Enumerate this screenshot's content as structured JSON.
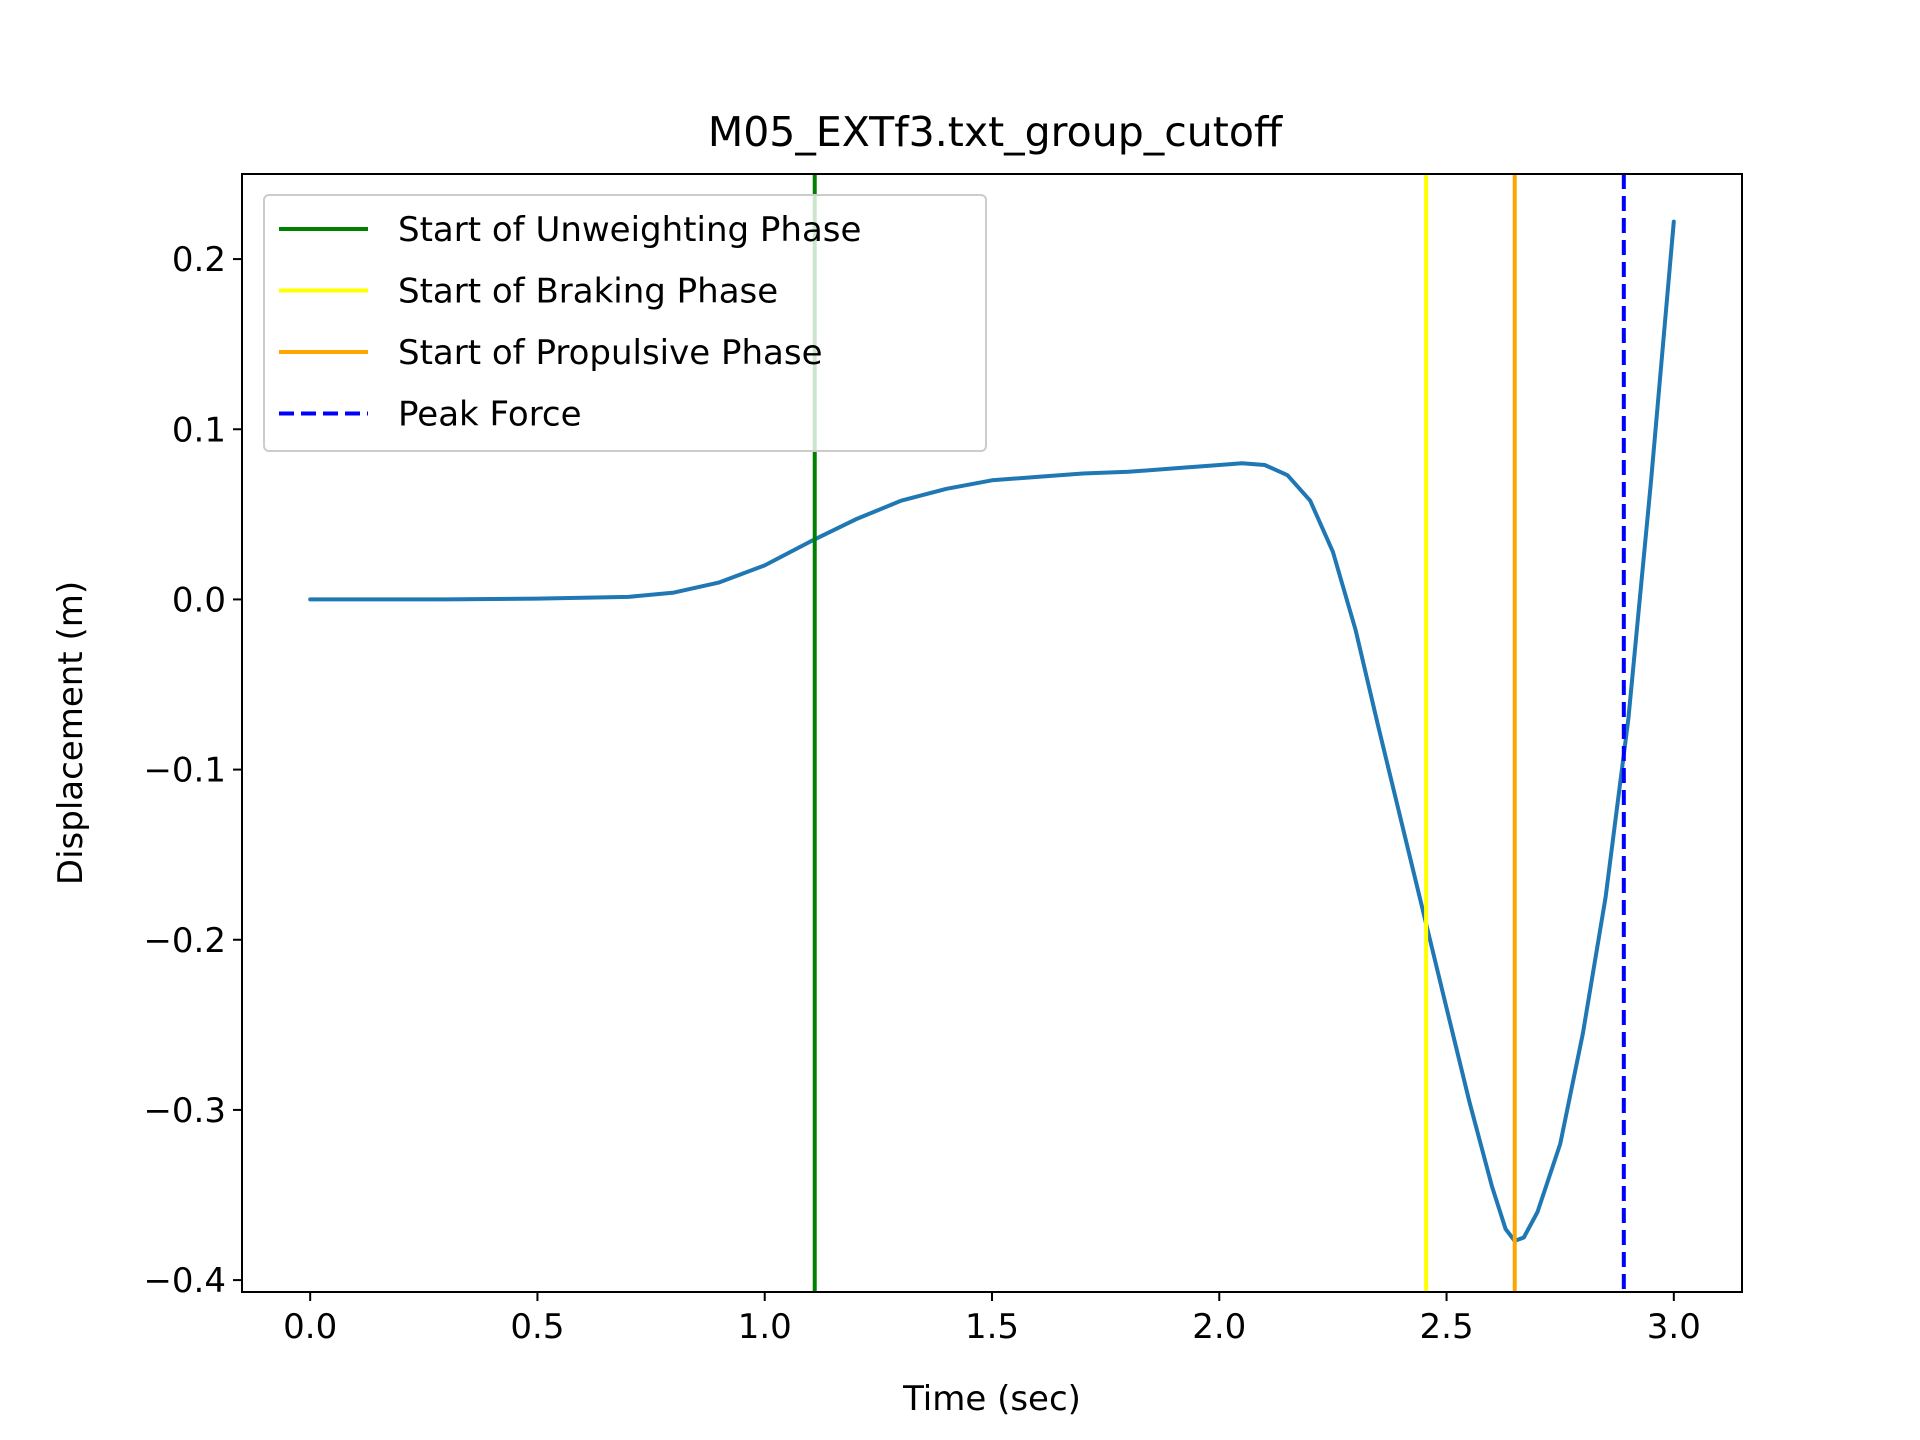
{
  "chart_data": {
    "type": "line",
    "title": "M05_EXTf3.txt_group_cutoff",
    "xlabel": "Time (sec)",
    "ylabel": "Displacement (m)",
    "xlim": [
      -0.15,
      3.15
    ],
    "ylim": [
      -0.407,
      0.25
    ],
    "x_ticks": [
      0.0,
      0.5,
      1.0,
      1.5,
      2.0,
      2.5,
      3.0
    ],
    "x_tick_labels": [
      "0.0",
      "0.5",
      "1.0",
      "1.5",
      "2.0",
      "2.5",
      "3.0"
    ],
    "y_ticks": [
      0.2,
      0.1,
      0.0,
      -0.1,
      -0.2,
      -0.3,
      -0.4
    ],
    "y_tick_labels": [
      "0.2",
      "0.1",
      "0.0",
      "−0.1",
      "−0.2",
      "−0.3",
      "−0.4"
    ],
    "grid": false,
    "legend_position": "top-left",
    "series": [
      {
        "color": "#1f77b4",
        "points": [
          [
            0.0,
            0.0
          ],
          [
            0.3,
            0.0
          ],
          [
            0.5,
            0.0005
          ],
          [
            0.7,
            0.0015
          ],
          [
            0.8,
            0.004
          ],
          [
            0.9,
            0.01
          ],
          [
            1.0,
            0.02
          ],
          [
            1.1,
            0.034
          ],
          [
            1.2,
            0.047
          ],
          [
            1.3,
            0.058
          ],
          [
            1.4,
            0.065
          ],
          [
            1.5,
            0.07
          ],
          [
            1.6,
            0.072
          ],
          [
            1.7,
            0.074
          ],
          [
            1.8,
            0.075
          ],
          [
            1.9,
            0.077
          ],
          [
            2.0,
            0.079
          ],
          [
            2.05,
            0.08
          ],
          [
            2.1,
            0.079
          ],
          [
            2.15,
            0.073
          ],
          [
            2.2,
            0.058
          ],
          [
            2.25,
            0.028
          ],
          [
            2.3,
            -0.018
          ],
          [
            2.35,
            -0.075
          ],
          [
            2.4,
            -0.13
          ],
          [
            2.45,
            -0.185
          ],
          [
            2.5,
            -0.24
          ],
          [
            2.55,
            -0.295
          ],
          [
            2.6,
            -0.345
          ],
          [
            2.63,
            -0.37
          ],
          [
            2.65,
            -0.377
          ],
          [
            2.67,
            -0.375
          ],
          [
            2.7,
            -0.36
          ],
          [
            2.75,
            -0.32
          ],
          [
            2.8,
            -0.255
          ],
          [
            2.85,
            -0.175
          ],
          [
            2.9,
            -0.07
          ],
          [
            2.95,
            0.07
          ],
          [
            3.0,
            0.222
          ]
        ]
      }
    ],
    "vlines": [
      {
        "name": "Start of Unweighting Phase",
        "x": 1.11,
        "color": "#008000",
        "style": "solid"
      },
      {
        "name": "Start of Braking Phase",
        "x": 2.455,
        "color": "#ffff00",
        "style": "solid"
      },
      {
        "name": "Start of Propulsive Phase",
        "x": 2.65,
        "color": "#ffa500",
        "style": "solid"
      },
      {
        "name": "Peak Force",
        "x": 2.89,
        "color": "#0000ff",
        "style": "dashed"
      }
    ]
  }
}
